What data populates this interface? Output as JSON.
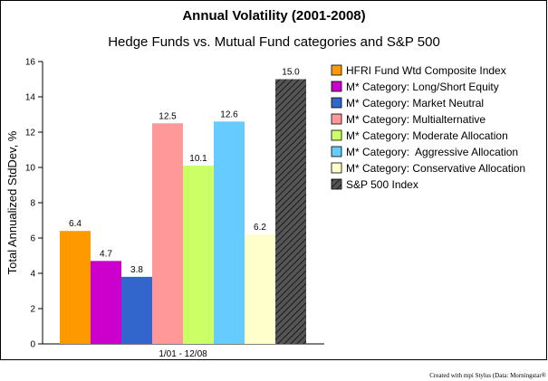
{
  "chart_data": {
    "type": "bar",
    "title": "Annual Volatility (2001-2008)",
    "subtitle": "Hedge Funds vs. Mutual Fund categories and S&P 500",
    "ylabel": "Total Annualized StdDev, %",
    "xlabel": "",
    "categories": [
      "1/01 - 12/08"
    ],
    "ylim": [
      0,
      16
    ],
    "yticks": [
      0,
      2,
      4,
      6,
      8,
      10,
      12,
      14,
      16
    ],
    "grid": false,
    "legend_position": "right",
    "series": [
      {
        "name": "HFRI Fund Wtd Composite Index",
        "values": [
          6.4
        ],
        "label": "6.4",
        "color": "#ff9900",
        "pattern": "solid"
      },
      {
        "name": "M* Category: Long/Short Equity",
        "values": [
          4.7
        ],
        "label": "4.7",
        "color": "#cc00cc",
        "pattern": "solid"
      },
      {
        "name": "M* Category: Market Neutral",
        "values": [
          3.8
        ],
        "label": "3.8",
        "color": "#3366cc",
        "pattern": "solid"
      },
      {
        "name": "M* Category: Multialternative",
        "values": [
          12.5
        ],
        "label": "12.5",
        "color": "#ff9999",
        "pattern": "solid"
      },
      {
        "name": "M* Category: Moderate Allocation",
        "values": [
          10.1
        ],
        "label": "10.1",
        "color": "#ccff66",
        "pattern": "solid"
      },
      {
        "name": "M* Category:  Aggressive Allocation",
        "values": [
          12.6
        ],
        "label": "12.6",
        "color": "#66ccff",
        "pattern": "solid"
      },
      {
        "name": "M* Category: Conservative Allocation",
        "values": [
          6.2
        ],
        "label": "6.2",
        "color": "#ffffcc",
        "pattern": "solid"
      },
      {
        "name": "S&P 500 Index",
        "values": [
          15.0
        ],
        "label": "15.0",
        "color": "#555555",
        "pattern": "hatch"
      }
    ]
  },
  "credit": "Created with mpi Stylus (Data: Morningstar®"
}
